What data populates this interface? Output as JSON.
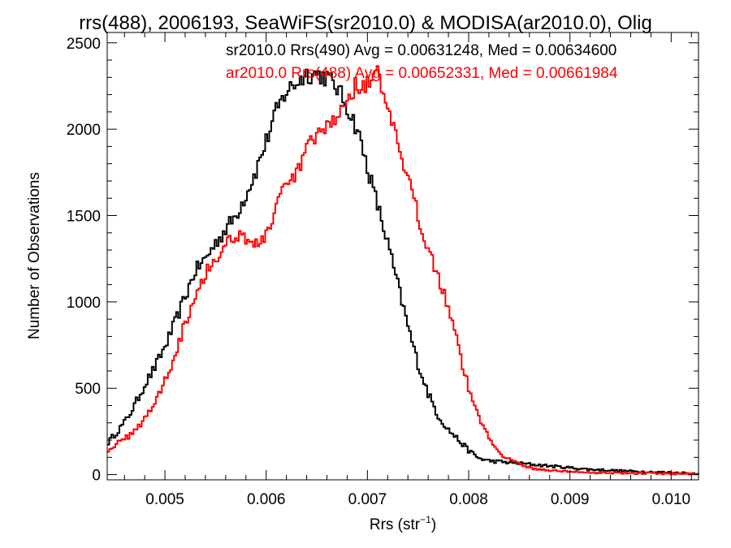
{
  "chart_data": {
    "type": "line",
    "title": "rrs(488), 2006193, SeaWiFS(sr2010.0) & MODISA(ar2010.0), Olig",
    "xlabel": "Rrs (str",
    "xlabel_sup": "−1",
    "xlabel_close": ")",
    "ylabel": "Number of Observations",
    "xlim": [
      0.00443,
      0.01027
    ],
    "ylim": [
      -30,
      2560
    ],
    "x_ticks": [
      0.005,
      0.006,
      0.007,
      0.008,
      0.009,
      0.01
    ],
    "x_tick_labels": [
      "0.005",
      "0.006",
      "0.007",
      "0.008",
      "0.009",
      "0.010"
    ],
    "y_ticks": [
      0,
      500,
      1000,
      1500,
      2000,
      2500
    ],
    "y_tick_labels": [
      "0",
      "500",
      "1000",
      "1500",
      "2000",
      "2500"
    ],
    "x_minor_step": 0.0002,
    "y_minor_step": 100,
    "grid": false,
    "legend_position": "top-right",
    "series": [
      {
        "name": "sr2010.0 Rrs(490) Avg = 0.00631248, Med = 0.00634600",
        "color": "#000000",
        "x": [
          0.00443,
          0.0045,
          0.0046,
          0.0047,
          0.0048,
          0.0049,
          0.005,
          0.0051,
          0.0052,
          0.0053,
          0.0054,
          0.0055,
          0.0056,
          0.0057,
          0.0058,
          0.0059,
          0.006,
          0.0061,
          0.0062,
          0.0063,
          0.0064,
          0.0065,
          0.0066,
          0.0067,
          0.0068,
          0.0069,
          0.007,
          0.0071,
          0.0072,
          0.0073,
          0.0074,
          0.0075,
          0.0076,
          0.0077,
          0.0078,
          0.0079,
          0.008,
          0.0081,
          0.0082,
          0.0083,
          0.0084,
          0.0085,
          0.0086,
          0.0087,
          0.0088,
          0.0089,
          0.009,
          0.0091,
          0.0092,
          0.0093,
          0.0094,
          0.0095,
          0.0096,
          0.0097,
          0.0098,
          0.0099,
          0.01,
          0.0101,
          0.0102,
          0.01027
        ],
        "values": [
          180,
          230,
          300,
          400,
          520,
          620,
          740,
          880,
          1030,
          1180,
          1250,
          1340,
          1420,
          1500,
          1620,
          1760,
          1930,
          2100,
          2220,
          2270,
          2320,
          2320,
          2300,
          2240,
          2130,
          2000,
          1780,
          1560,
          1340,
          1100,
          860,
          640,
          470,
          340,
          260,
          200,
          140,
          95,
          80,
          75,
          70,
          65,
          60,
          55,
          50,
          45,
          40,
          35,
          30,
          28,
          25,
          22,
          20,
          18,
          16,
          14,
          12,
          10,
          8,
          8
        ]
      },
      {
        "name": "ar2010.0 Rrs(488) Avg = 0.00652331, Med = 0.00661984",
        "color": "#ff0000",
        "x": [
          0.00443,
          0.0045,
          0.0046,
          0.0047,
          0.0048,
          0.0049,
          0.005,
          0.0051,
          0.0052,
          0.0053,
          0.0054,
          0.0055,
          0.0056,
          0.0057,
          0.0058,
          0.0059,
          0.006,
          0.0061,
          0.0062,
          0.0063,
          0.0064,
          0.0065,
          0.0066,
          0.0067,
          0.0068,
          0.0069,
          0.007,
          0.0071,
          0.0072,
          0.0073,
          0.0074,
          0.0075,
          0.0076,
          0.0077,
          0.0078,
          0.0079,
          0.008,
          0.0081,
          0.0082,
          0.0083,
          0.0084,
          0.0085,
          0.0086,
          0.0087,
          0.0088,
          0.0089,
          0.009,
          0.0091,
          0.0092,
          0.0093,
          0.0094,
          0.0095,
          0.0096,
          0.0097,
          0.0098,
          0.0099,
          0.01,
          0.0101,
          0.0102,
          0.01027
        ],
        "values": [
          140,
          170,
          200,
          260,
          320,
          420,
          540,
          700,
          880,
          1040,
          1170,
          1250,
          1330,
          1400,
          1370,
          1330,
          1380,
          1560,
          1660,
          1740,
          1880,
          1960,
          2000,
          2080,
          2180,
          2260,
          2260,
          2320,
          2120,
          1900,
          1700,
          1500,
          1320,
          1150,
          980,
          730,
          500,
          330,
          220,
          130,
          90,
          60,
          40,
          30,
          25,
          20,
          18,
          15,
          13,
          12,
          11,
          10,
          9,
          8,
          8,
          7,
          7,
          6,
          6,
          6
        ]
      }
    ]
  }
}
